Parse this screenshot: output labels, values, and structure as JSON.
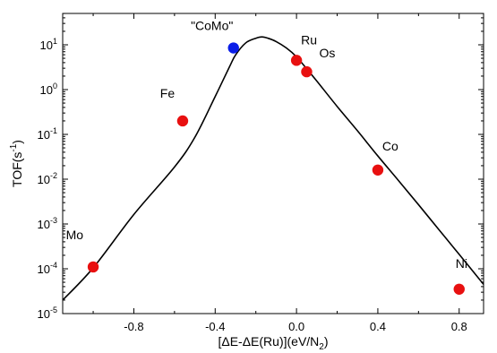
{
  "chart_data": {
    "type": "scatter",
    "xlabel": {
      "main": "[ΔE-ΔE(Ru)](eV/N",
      "sub": "2",
      "tail": ")"
    },
    "ylabel": {
      "main": "TOF(s",
      "sup": "-1",
      "tail": ")"
    },
    "xlim": [
      -1.15,
      0.92
    ],
    "ylim_log10": [
      -5,
      1.7
    ],
    "log_y": true,
    "grid": false,
    "x_ticks": [
      -0.8,
      -0.4,
      0.0,
      0.4,
      0.8
    ],
    "x_tick_labels": [
      "-0.8",
      "-0.4",
      "0.0",
      "0.4",
      "0.8"
    ],
    "y_ticks_log10": [
      -5,
      -4,
      -3,
      -2,
      -1,
      0,
      1
    ],
    "y_tick_labels": [
      {
        "base": "10",
        "exp": "-5"
      },
      {
        "base": "10",
        "exp": "-4"
      },
      {
        "base": "10",
        "exp": "-3"
      },
      {
        "base": "10",
        "exp": "-2"
      },
      {
        "base": "10",
        "exp": "-1"
      },
      {
        "base": "10",
        "exp": "0"
      },
      {
        "base": "10",
        "exp": "1"
      }
    ],
    "points": [
      {
        "label": "Mo",
        "x": -1.0,
        "y": 0.00011,
        "color": "#e81010"
      },
      {
        "label": "Fe",
        "x": -0.56,
        "y": 0.2,
        "color": "#e81010"
      },
      {
        "label": "\"CoMo\"",
        "x": -0.31,
        "y": 8.5,
        "color": "#0a1ee8"
      },
      {
        "label": "Ru",
        "x": 0.0,
        "y": 4.5,
        "color": "#e81010"
      },
      {
        "label": "Os",
        "x": 0.05,
        "y": 2.5,
        "color": "#e81010"
      },
      {
        "label": "Co",
        "x": 0.4,
        "y": 0.016,
        "color": "#e81010"
      },
      {
        "label": "Ni",
        "x": 0.8,
        "y": 3.5e-05,
        "color": "#e81010"
      }
    ],
    "curve": {
      "x": [
        -1.15,
        -1.0,
        -0.8,
        -0.6,
        -0.5,
        -0.4,
        -0.33,
        -0.3,
        -0.25,
        -0.2,
        -0.17,
        -0.14,
        -0.1,
        -0.05,
        0.0,
        0.05,
        0.1,
        0.2,
        0.3,
        0.4,
        0.5,
        0.6,
        0.7,
        0.8,
        0.92
      ],
      "y": [
        2e-05,
        0.000105,
        0.00163,
        0.0187,
        0.086,
        0.7,
        3.2,
        5.9,
        11.0,
        14.0,
        15.0,
        14.0,
        11.8,
        8.5,
        5.4,
        2.9,
        1.55,
        0.42,
        0.12,
        0.033,
        0.0095,
        0.0027,
        0.00075,
        0.00021,
        4.5e-05
      ]
    }
  }
}
